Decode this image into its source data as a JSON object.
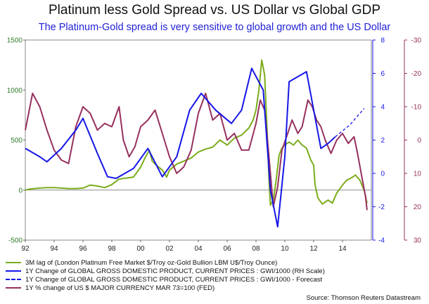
{
  "title": "Platinum less Gold Spread vs. US Dollar vs Global GDP",
  "subtitle": "The Platinum-Gold spread is very sensitive to global growth and the US Dollar",
  "source": "Source: Thomson Reuters Datastream",
  "colors": {
    "spread": "#7cac1c",
    "gdp": "#1616e8",
    "usd": "#96305e",
    "left_axis": "#2e7d2a",
    "right_axis1": "#1616e8",
    "right_axis2": "#96305e"
  },
  "chart_data": {
    "type": "line",
    "title": "Platinum less Gold Spread vs. US Dollar vs Global GDP",
    "x_range": [
      1992,
      2016
    ],
    "x_ticks": [
      "92",
      "94",
      "96",
      "98",
      "00",
      "02",
      "04",
      "06",
      "08",
      "10",
      "12",
      "14"
    ],
    "axes": {
      "left": {
        "range": [
          -500,
          1500
        ],
        "ticks": [
          "-500",
          "0",
          "500",
          "1000",
          "1500"
        ]
      },
      "right1": {
        "range": [
          -4,
          8
        ],
        "ticks": [
          "-4",
          "-2",
          "0",
          "2",
          "4",
          "6",
          "8"
        ]
      },
      "right2": {
        "range": [
          30,
          -30
        ],
        "inverted": true,
        "ticks": [
          "30",
          "20",
          "10",
          "0",
          "-10",
          "-20",
          "-30"
        ]
      }
    },
    "series": [
      {
        "name": "3M lag of (London Platinum Free Market $/Troy oz-Gold Bullion LBM U$/Troy Ounce)",
        "axis": "left",
        "points": [
          [
            1992.0,
            0
          ],
          [
            1992.3,
            10
          ],
          [
            1993.0,
            20
          ],
          [
            1993.5,
            25
          ],
          [
            1994.0,
            25
          ],
          [
            1994.5,
            20
          ],
          [
            1995.0,
            15
          ],
          [
            1995.5,
            15
          ],
          [
            1996.0,
            20
          ],
          [
            1996.5,
            50
          ],
          [
            1997.0,
            40
          ],
          [
            1997.5,
            25
          ],
          [
            1998.0,
            55
          ],
          [
            1998.5,
            110
          ],
          [
            1999.0,
            120
          ],
          [
            1999.5,
            130
          ],
          [
            2000.0,
            230
          ],
          [
            2000.3,
            320
          ],
          [
            2000.6,
            400
          ],
          [
            2000.8,
            290
          ],
          [
            2001.0,
            260
          ],
          [
            2001.5,
            200
          ],
          [
            2001.8,
            130
          ],
          [
            2002.0,
            200
          ],
          [
            2002.5,
            260
          ],
          [
            2003.0,
            290
          ],
          [
            2003.5,
            320
          ],
          [
            2004.0,
            380
          ],
          [
            2004.5,
            410
          ],
          [
            2005.0,
            430
          ],
          [
            2005.5,
            500
          ],
          [
            2006.0,
            450
          ],
          [
            2006.5,
            520
          ],
          [
            2007.0,
            550
          ],
          [
            2007.5,
            620
          ],
          [
            2007.8,
            700
          ],
          [
            2008.0,
            800
          ],
          [
            2008.2,
            1000
          ],
          [
            2008.4,
            1300
          ],
          [
            2008.6,
            1150
          ],
          [
            2008.8,
            500
          ],
          [
            2008.9,
            100
          ],
          [
            2009.0,
            -150
          ],
          [
            2009.2,
            -100
          ],
          [
            2009.4,
            100
          ],
          [
            2009.6,
            350
          ],
          [
            2009.8,
            420
          ],
          [
            2010.0,
            450
          ],
          [
            2010.3,
            480
          ],
          [
            2010.6,
            450
          ],
          [
            2010.9,
            500
          ],
          [
            2011.2,
            450
          ],
          [
            2011.5,
            420
          ],
          [
            2011.8,
            300
          ],
          [
            2012.0,
            250
          ],
          [
            2012.1,
            50
          ],
          [
            2012.3,
            -80
          ],
          [
            2012.6,
            -140
          ],
          [
            2013.0,
            -100
          ],
          [
            2013.3,
            -130
          ],
          [
            2013.6,
            -30
          ],
          [
            2014.0,
            50
          ],
          [
            2014.3,
            100
          ],
          [
            2014.6,
            120
          ],
          [
            2014.9,
            150
          ],
          [
            2015.2,
            100
          ],
          [
            2015.5,
            0
          ],
          [
            2015.7,
            -130
          ]
        ]
      },
      {
        "name": "1Y Change of GLOBAL GROSS DOMESTIC PRODUCT, CURRENT PRICES : GWI/1000 (RH Scale)",
        "axis": "right1",
        "points": [
          [
            1992.0,
            1.5
          ],
          [
            1993.0,
            1.0
          ],
          [
            1993.5,
            0.7
          ],
          [
            1994.5,
            1.5
          ],
          [
            1995.5,
            2.6
          ],
          [
            1996.0,
            3.3
          ],
          [
            1997.0,
            1.2
          ],
          [
            1997.7,
            -0.2
          ],
          [
            1998.3,
            -0.3
          ],
          [
            1999.5,
            0.3
          ],
          [
            2000.5,
            1.5
          ],
          [
            2001.5,
            -0.2
          ],
          [
            2002.5,
            1.0
          ],
          [
            2003.4,
            3.8
          ],
          [
            2004.2,
            4.8
          ],
          [
            2005.2,
            3.8
          ],
          [
            2006.3,
            3.0
          ],
          [
            2007.0,
            3.8
          ],
          [
            2007.7,
            6.3
          ],
          [
            2008.5,
            5.0
          ],
          [
            2009.0,
            -1.0
          ],
          [
            2009.5,
            -3.2
          ],
          [
            2010.0,
            1.0
          ],
          [
            2010.3,
            5.5
          ],
          [
            2011.5,
            6.1
          ],
          [
            2012.5,
            1.5
          ],
          [
            2013.0,
            1.8
          ],
          [
            2013.5,
            2.2
          ]
        ]
      },
      {
        "name": "1Y Change of GLOBAL GROSS DOMESTIC PRODUCT, CURRENT PRICES : GWI/1000 - Forecast",
        "axis": "right1",
        "dashed": true,
        "points": [
          [
            2013.5,
            2.2
          ],
          [
            2014.5,
            2.9
          ],
          [
            2015.5,
            3.9
          ]
        ]
      },
      {
        "name": "1Y % change of US $ MAJOR CURRENCY MAR 73=100 (FED)",
        "axis": "right2",
        "points": [
          [
            1992.0,
            -3
          ],
          [
            1992.5,
            -14
          ],
          [
            1993.0,
            -10
          ],
          [
            1993.5,
            -3
          ],
          [
            1994.0,
            3
          ],
          [
            1994.5,
            6
          ],
          [
            1995.0,
            7
          ],
          [
            1995.5,
            -4
          ],
          [
            1996.0,
            -10
          ],
          [
            1996.5,
            -8
          ],
          [
            1997.0,
            -3
          ],
          [
            1997.5,
            -5
          ],
          [
            1998.0,
            -4
          ],
          [
            1998.5,
            -10
          ],
          [
            1998.8,
            0
          ],
          [
            1999.2,
            5
          ],
          [
            1999.6,
            2
          ],
          [
            2000.0,
            -4
          ],
          [
            2000.5,
            -6
          ],
          [
            2001.0,
            -9
          ],
          [
            2001.5,
            -2
          ],
          [
            2002.0,
            5
          ],
          [
            2002.5,
            10
          ],
          [
            2003.0,
            8
          ],
          [
            2003.5,
            3
          ],
          [
            2004.0,
            -8
          ],
          [
            2004.5,
            -14
          ],
          [
            2005.0,
            -6
          ],
          [
            2005.5,
            -8
          ],
          [
            2006.0,
            0
          ],
          [
            2006.5,
            -2
          ],
          [
            2007.0,
            3
          ],
          [
            2007.5,
            3
          ],
          [
            2008.0,
            -5
          ],
          [
            2008.3,
            -12
          ],
          [
            2008.6,
            -9
          ],
          [
            2008.9,
            5
          ],
          [
            2009.2,
            20
          ],
          [
            2009.5,
            14
          ],
          [
            2009.8,
            3
          ],
          [
            2010.2,
            -2
          ],
          [
            2010.5,
            -6
          ],
          [
            2010.9,
            -2
          ],
          [
            2011.2,
            -4
          ],
          [
            2011.6,
            -12
          ],
          [
            2011.9,
            -10
          ],
          [
            2012.2,
            -6
          ],
          [
            2012.5,
            -4
          ],
          [
            2012.8,
            0
          ],
          [
            2013.2,
            4
          ],
          [
            2013.6,
            0
          ],
          [
            2014.0,
            -2
          ],
          [
            2014.4,
            1
          ],
          [
            2014.8,
            -1
          ],
          [
            2015.0,
            3
          ],
          [
            2015.3,
            10
          ],
          [
            2015.6,
            17
          ],
          [
            2015.7,
            21
          ]
        ]
      }
    ]
  }
}
